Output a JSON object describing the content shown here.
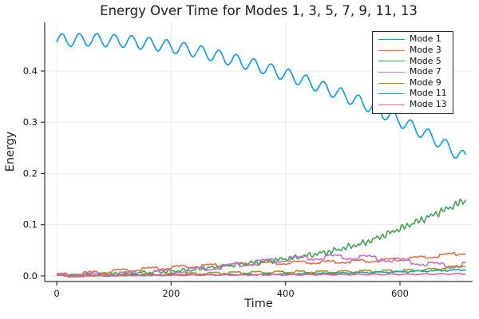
{
  "figure": {
    "title": "Energy Over Time for Modes 1, 3, 5, 7, 9, 11, 13",
    "xlabel": "Time",
    "ylabel": "Energy"
  },
  "chart_data": {
    "type": "line",
    "title": "Energy Over Time for Modes 1, 3, 5, 7, 9, 11, 13",
    "xlabel": "Time",
    "ylabel": "Energy",
    "xlim": [
      -21,
      727
    ],
    "ylim": [
      -0.011,
      0.495
    ],
    "xticks": [
      0,
      200,
      400,
      600
    ],
    "yticks": [
      0.0,
      0.1,
      0.2,
      0.3,
      0.4
    ],
    "grid": true,
    "grid_color": "#e9e9e9",
    "spine_color": "#2f3337",
    "legend_position": "top-right-inside",
    "t_range": [
      0,
      715
    ],
    "series": [
      {
        "name": "Mode 1",
        "color": "#009AFA",
        "anchors": [
          [
            0,
            0.46
          ],
          [
            60,
            0.461
          ],
          [
            120,
            0.458
          ],
          [
            180,
            0.451
          ],
          [
            240,
            0.44
          ],
          [
            300,
            0.424
          ],
          [
            360,
            0.407
          ],
          [
            420,
            0.386
          ],
          [
            480,
            0.362
          ],
          [
            540,
            0.335
          ],
          [
            600,
            0.303
          ],
          [
            660,
            0.268
          ],
          [
            715,
            0.229
          ]
        ],
        "osc": {
          "wave": "sin",
          "amp": 0.0125,
          "period": 30.5,
          "phase": -0.3
        },
        "noise": {
          "amp": 0.0005,
          "grow": false,
          "seed": 1
        }
      },
      {
        "name": "Mode 3",
        "color": "#E36F47",
        "anchors": [
          [
            0,
            0.002
          ],
          [
            60,
            0.006
          ],
          [
            120,
            0.011
          ],
          [
            180,
            0.015
          ],
          [
            240,
            0.019
          ],
          [
            300,
            0.022
          ],
          [
            360,
            0.024
          ],
          [
            420,
            0.026
          ],
          [
            480,
            0.027
          ],
          [
            540,
            0.029
          ],
          [
            600,
            0.032
          ],
          [
            660,
            0.038
          ],
          [
            715,
            0.045
          ]
        ],
        "osc": {
          "wave": "square",
          "amp": 0.0022,
          "period": 52,
          "phase": 0.8
        },
        "noise": {
          "amp": 0.0012,
          "grow": false,
          "seed": 2
        }
      },
      {
        "name": "Mode 5",
        "color": "#3EA44E",
        "anchors": [
          [
            0,
            0.001
          ],
          [
            60,
            0.002
          ],
          [
            120,
            0.005
          ],
          [
            180,
            0.008
          ],
          [
            240,
            0.012
          ],
          [
            300,
            0.02
          ],
          [
            360,
            0.028
          ],
          [
            420,
            0.036
          ],
          [
            480,
            0.048
          ],
          [
            540,
            0.065
          ],
          [
            600,
            0.092
          ],
          [
            660,
            0.12
          ],
          [
            690,
            0.135
          ],
          [
            715,
            0.148
          ]
        ],
        "osc": {
          "wave": "sin",
          "amp": 0.002,
          "period": 24,
          "phase": 0
        },
        "noise": {
          "amp": 0.0075,
          "grow": true,
          "seed": 3
        }
      },
      {
        "name": "Mode 7",
        "color": "#C371D2",
        "anchors": [
          [
            0,
            0.001
          ],
          [
            60,
            0.002
          ],
          [
            120,
            0.004
          ],
          [
            180,
            0.007
          ],
          [
            240,
            0.012
          ],
          [
            300,
            0.019
          ],
          [
            360,
            0.028
          ],
          [
            420,
            0.034
          ],
          [
            480,
            0.037
          ],
          [
            540,
            0.036
          ],
          [
            600,
            0.03
          ],
          [
            660,
            0.022
          ],
          [
            690,
            0.019
          ],
          [
            715,
            0.024
          ]
        ],
        "osc": {
          "wave": "square",
          "amp": 0.0035,
          "period": 60,
          "phase": 1.2
        },
        "noise": {
          "amp": 0.002,
          "grow": true,
          "seed": 4
        }
      },
      {
        "name": "Mode 9",
        "color": "#AC8E18",
        "anchors": [
          [
            0,
            0.001
          ],
          [
            60,
            0.0015
          ],
          [
            120,
            0.002
          ],
          [
            180,
            0.003
          ],
          [
            240,
            0.0045
          ],
          [
            300,
            0.006
          ],
          [
            360,
            0.007
          ],
          [
            420,
            0.008
          ],
          [
            480,
            0.008
          ],
          [
            540,
            0.009
          ],
          [
            600,
            0.01
          ],
          [
            660,
            0.013
          ],
          [
            690,
            0.017
          ],
          [
            715,
            0.02
          ]
        ],
        "osc": {
          "wave": "square",
          "amp": 0.0015,
          "period": 38,
          "phase": 0.4
        },
        "noise": {
          "amp": 0.0012,
          "grow": true,
          "seed": 5
        }
      },
      {
        "name": "Mode 11",
        "color": "#00AAAE",
        "anchors": [
          [
            0,
            0.0005
          ],
          [
            120,
            0.001
          ],
          [
            240,
            0.002
          ],
          [
            360,
            0.003
          ],
          [
            480,
            0.005
          ],
          [
            600,
            0.008
          ],
          [
            660,
            0.01
          ],
          [
            715,
            0.012
          ]
        ],
        "osc": {
          "wave": "sin",
          "amp": 0.001,
          "period": 33,
          "phase": 1.0
        },
        "noise": {
          "amp": 0.0012,
          "grow": true,
          "seed": 6
        }
      },
      {
        "name": "Mode 13",
        "color": "#ED5E93",
        "anchors": [
          [
            0,
            0.0005
          ],
          [
            120,
            0.001
          ],
          [
            240,
            0.0015
          ],
          [
            360,
            0.002
          ],
          [
            480,
            0.0025
          ],
          [
            600,
            0.003
          ],
          [
            715,
            0.004
          ]
        ],
        "osc": {
          "wave": "sin",
          "amp": 0.0008,
          "period": 29,
          "phase": 0.5
        },
        "noise": {
          "amp": 0.0005,
          "grow": false,
          "seed": 7
        }
      }
    ]
  }
}
